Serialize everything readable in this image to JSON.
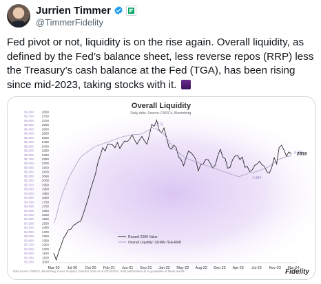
{
  "author": {
    "name": "Jurrien Timmer",
    "handle": "@TimmerFidelity",
    "verified_color": "#1d9bf0",
    "affiliation_color": "#00a562"
  },
  "tweet": {
    "text": "Fed pivot or not, liquidity is on the rise again.  Overall liquidity, as defined by the Fed’s balance sheet, less reverse repos (RRP) less the Treasury’s cash balance at the Fed (TGA), has been rising since mid-2023, taking stocks with it.",
    "emoji": "purple-thread-emoji"
  },
  "chart_data": {
    "type": "line",
    "title": "Overall Liquidity",
    "subtitle": "Daily data.  Source: FMRCo, Bloomberg.",
    "source_note": "Data source: FMRCo, Bloomberg, Haver Analytics, FactSet. Data as of 03/10/2024. Past performance is no guarantee of future results.",
    "brand": "Fidelity",
    "x_ticks": [
      "Mar-20",
      "Jul-20",
      "Oct-20",
      "Feb-21",
      "Jun-21",
      "Sep-21",
      "Jan-22",
      "May-22",
      "Aug-22",
      "Dec-22",
      "Apr-23",
      "Jul-23",
      "Nov-23",
      "Mar-24"
    ],
    "y_left_ticks": [
      "2800",
      "2750",
      "2700",
      "2650",
      "2600",
      "2550",
      "2500",
      "2450",
      "2400",
      "2350",
      "2300",
      "2250",
      "2200",
      "2150",
      "2100",
      "2050",
      "2000",
      "1950",
      "1900",
      "1850",
      "1800",
      "1750",
      "1700",
      "1650",
      "1600",
      "1550",
      "1500",
      "1450",
      "1400",
      "1350",
      "1300",
      "1250",
      "1200",
      "1150",
      "1100",
      "1050"
    ],
    "y_right_ticks": [
      "$6,800",
      "$6,700",
      "$6,600",
      "$6,500",
      "$6,400",
      "$6,300",
      "$6,200",
      "$6,100",
      "$6,000",
      "$5,900",
      "$5,800",
      "$5,700",
      "$5,600",
      "$5,500",
      "$5,400",
      "$5,300",
      "$5,200",
      "$5,100",
      "$5,000",
      "$4,900",
      "$4,800",
      "$4,700",
      "$4,600",
      "$4,500",
      "$4,400",
      "$4,300",
      "$4,200",
      "$4,100",
      "$4,000",
      "$3,900",
      "$3,800",
      "$3,700",
      "$3,600",
      "$3,500",
      "$3,400",
      "$3,300"
    ],
    "ylim_left": [
      1050,
      2800
    ],
    "annotations": [
      {
        "text": "6,273",
        "series": "Overall Liquidity: SOMA-TGA-RRP",
        "x_index": 40
      },
      {
        "text": "4,984",
        "series": "Overall Liquidity: SOMA-TGA-RRP",
        "x_index": 80
      },
      {
        "text": "5,385",
        "series": "Overall Liquidity: SOMA-TGA-RRP",
        "x_index": 97
      },
      {
        "text": "2316",
        "series": "Russell 2000 Value",
        "x_index": 97
      }
    ],
    "series": [
      {
        "name": "Russell 2000 Value",
        "color": "#2a2a2a",
        "values": [
          1150,
          1080,
          1160,
          1250,
          1320,
          1380,
          1420,
          1440,
          1470,
          1500,
          1510,
          1530,
          1600,
          1700,
          1780,
          1900,
          1980,
          2080,
          2200,
          2300,
          2380,
          2350,
          2420,
          2430,
          2410,
          2390,
          2440,
          2380,
          2420,
          2470,
          2450,
          2490,
          2530,
          2480,
          2420,
          2480,
          2510,
          2470,
          2420,
          2530,
          2650,
          2640,
          2700,
          2600,
          2550,
          2620,
          2500,
          2400,
          2360,
          2420,
          2380,
          2280,
          2240,
          2180,
          2260,
          2350,
          2320,
          2300,
          2240,
          2120,
          2180,
          2200,
          2240,
          2250,
          2190,
          2150,
          2180,
          2300,
          2360,
          2280,
          2250,
          2150,
          2150,
          2250,
          2280,
          2300,
          2240,
          2280,
          2150,
          2170,
          2100,
          2130,
          2170,
          2200,
          2220,
          2190,
          2160,
          2110,
          2080,
          2160,
          2260,
          2200,
          2380,
          2420,
          2350,
          2290,
          2330,
          2316
        ]
      },
      {
        "name": "Overall Liquidity: SOMA-TGA-RRP",
        "color": "#a99bc4",
        "values": [
          1500,
          1580,
          1700,
          1800,
          1880,
          1950,
          2020,
          2080,
          2130,
          2180,
          2230,
          2270,
          2300,
          2320,
          2340,
          2360,
          2380,
          2400,
          2410,
          2420,
          2430,
          2440,
          2450,
          2460,
          2470,
          2480,
          2490,
          2500,
          2510,
          2520,
          2520,
          2530,
          2530,
          2540,
          2540,
          2540,
          2550,
          2560,
          2580,
          2590,
          2620,
          2610,
          2600,
          2580,
          2560,
          2540,
          2500,
          2460,
          2420,
          2380,
          2350,
          2330,
          2300,
          2280,
          2260,
          2250,
          2240,
          2230,
          2220,
          2210,
          2200,
          2190,
          2180,
          2170,
          2160,
          2150,
          2140,
          2130,
          2120,
          2110,
          2100,
          2090,
          2080,
          2070,
          2060,
          2050,
          2050,
          2060,
          2070,
          2080,
          2100,
          2090,
          2100,
          2110,
          2120,
          2130,
          2140,
          2150,
          2170,
          2190,
          2210,
          2230,
          2250,
          2260,
          2270,
          2280,
          2285,
          2290
        ]
      }
    ]
  }
}
